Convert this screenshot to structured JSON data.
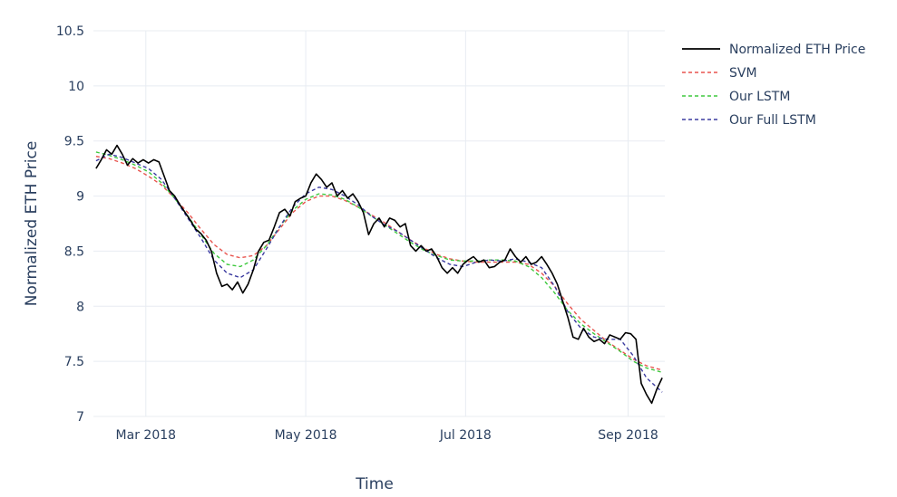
{
  "chart_data": {
    "type": "line",
    "xlabel": "Time",
    "ylabel": "Normalized ETH Price",
    "xlim": [
      "2018-02-09",
      "2018-09-15"
    ],
    "ylim": [
      7.0,
      10.5
    ],
    "x_ticks": [
      {
        "date": "2018-03-01",
        "label": "Mar 2018"
      },
      {
        "date": "2018-05-01",
        "label": "May 2018"
      },
      {
        "date": "2018-07-01",
        "label": "Jul 2018"
      },
      {
        "date": "2018-09-01",
        "label": "Sep 2018"
      }
    ],
    "y_ticks": [
      {
        "value": 7,
        "label": "7"
      },
      {
        "value": 7.5,
        "label": "7.5"
      },
      {
        "value": 8,
        "label": "8"
      },
      {
        "value": 8.5,
        "label": "8.5"
      },
      {
        "value": 9,
        "label": "9"
      },
      {
        "value": 9.5,
        "label": "9.5"
      },
      {
        "value": 10,
        "label": "10"
      },
      {
        "value": 10.5,
        "label": "10.5"
      }
    ],
    "grid": true,
    "legend_position": "top-right",
    "series": [
      {
        "name": "Normalized ETH Price",
        "color": "#000000",
        "dash": "solid",
        "points": [
          [
            "2018-02-10",
            9.25
          ],
          [
            "2018-02-12",
            9.33
          ],
          [
            "2018-02-14",
            9.42
          ],
          [
            "2018-02-16",
            9.38
          ],
          [
            "2018-02-18",
            9.46
          ],
          [
            "2018-02-20",
            9.38
          ],
          [
            "2018-02-22",
            9.28
          ],
          [
            "2018-02-24",
            9.34
          ],
          [
            "2018-02-26",
            9.3
          ],
          [
            "2018-02-28",
            9.33
          ],
          [
            "2018-03-02",
            9.3
          ],
          [
            "2018-03-04",
            9.33
          ],
          [
            "2018-03-06",
            9.31
          ],
          [
            "2018-03-08",
            9.18
          ],
          [
            "2018-03-10",
            9.05
          ],
          [
            "2018-03-12",
            9.0
          ],
          [
            "2018-03-14",
            8.92
          ],
          [
            "2018-03-16",
            8.85
          ],
          [
            "2018-03-18",
            8.78
          ],
          [
            "2018-03-20",
            8.7
          ],
          [
            "2018-03-22",
            8.66
          ],
          [
            "2018-03-24",
            8.6
          ],
          [
            "2018-03-26",
            8.5
          ],
          [
            "2018-03-28",
            8.3
          ],
          [
            "2018-03-30",
            8.18
          ],
          [
            "2018-04-01",
            8.2
          ],
          [
            "2018-04-03",
            8.15
          ],
          [
            "2018-04-05",
            8.22
          ],
          [
            "2018-04-07",
            8.12
          ],
          [
            "2018-04-09",
            8.2
          ],
          [
            "2018-04-11",
            8.33
          ],
          [
            "2018-04-13",
            8.5
          ],
          [
            "2018-04-15",
            8.58
          ],
          [
            "2018-04-17",
            8.6
          ],
          [
            "2018-04-19",
            8.72
          ],
          [
            "2018-04-21",
            8.85
          ],
          [
            "2018-04-23",
            8.88
          ],
          [
            "2018-04-25",
            8.82
          ],
          [
            "2018-04-27",
            8.95
          ],
          [
            "2018-04-29",
            8.98
          ],
          [
            "2018-05-01",
            9.0
          ],
          [
            "2018-05-03",
            9.12
          ],
          [
            "2018-05-05",
            9.2
          ],
          [
            "2018-05-07",
            9.15
          ],
          [
            "2018-05-09",
            9.08
          ],
          [
            "2018-05-11",
            9.12
          ],
          [
            "2018-05-13",
            9.0
          ],
          [
            "2018-05-15",
            9.05
          ],
          [
            "2018-05-17",
            8.98
          ],
          [
            "2018-05-19",
            9.02
          ],
          [
            "2018-05-21",
            8.95
          ],
          [
            "2018-05-23",
            8.85
          ],
          [
            "2018-05-25",
            8.65
          ],
          [
            "2018-05-27",
            8.75
          ],
          [
            "2018-05-29",
            8.8
          ],
          [
            "2018-05-31",
            8.72
          ],
          [
            "2018-06-02",
            8.8
          ],
          [
            "2018-06-04",
            8.78
          ],
          [
            "2018-06-06",
            8.72
          ],
          [
            "2018-06-08",
            8.75
          ],
          [
            "2018-06-10",
            8.55
          ],
          [
            "2018-06-12",
            8.5
          ],
          [
            "2018-06-14",
            8.55
          ],
          [
            "2018-06-16",
            8.5
          ],
          [
            "2018-06-18",
            8.52
          ],
          [
            "2018-06-20",
            8.45
          ],
          [
            "2018-06-22",
            8.35
          ],
          [
            "2018-06-24",
            8.3
          ],
          [
            "2018-06-26",
            8.35
          ],
          [
            "2018-06-28",
            8.3
          ],
          [
            "2018-06-30",
            8.38
          ],
          [
            "2018-07-02",
            8.42
          ],
          [
            "2018-07-04",
            8.45
          ],
          [
            "2018-07-06",
            8.4
          ],
          [
            "2018-07-08",
            8.42
          ],
          [
            "2018-07-10",
            8.35
          ],
          [
            "2018-07-12",
            8.36
          ],
          [
            "2018-07-14",
            8.4
          ],
          [
            "2018-07-16",
            8.42
          ],
          [
            "2018-07-18",
            8.52
          ],
          [
            "2018-07-20",
            8.45
          ],
          [
            "2018-07-22",
            8.4
          ],
          [
            "2018-07-24",
            8.45
          ],
          [
            "2018-07-26",
            8.38
          ],
          [
            "2018-07-28",
            8.4
          ],
          [
            "2018-07-30",
            8.45
          ],
          [
            "2018-08-01",
            8.38
          ],
          [
            "2018-08-03",
            8.3
          ],
          [
            "2018-08-05",
            8.2
          ],
          [
            "2018-08-07",
            8.05
          ],
          [
            "2018-08-09",
            7.9
          ],
          [
            "2018-08-11",
            7.72
          ],
          [
            "2018-08-13",
            7.7
          ],
          [
            "2018-08-15",
            7.8
          ],
          [
            "2018-08-17",
            7.72
          ],
          [
            "2018-08-19",
            7.68
          ],
          [
            "2018-08-21",
            7.7
          ],
          [
            "2018-08-23",
            7.66
          ],
          [
            "2018-08-25",
            7.74
          ],
          [
            "2018-08-27",
            7.72
          ],
          [
            "2018-08-29",
            7.7
          ],
          [
            "2018-08-31",
            7.76
          ],
          [
            "2018-09-02",
            7.75
          ],
          [
            "2018-09-04",
            7.7
          ],
          [
            "2018-09-06",
            7.3
          ],
          [
            "2018-09-08",
            7.2
          ],
          [
            "2018-09-10",
            7.12
          ],
          [
            "2018-09-12",
            7.25
          ],
          [
            "2018-09-14",
            7.35
          ]
        ]
      },
      {
        "name": "SVM",
        "color": "#e8544e",
        "dash": "dashed",
        "points": [
          [
            "2018-02-10",
            9.36
          ],
          [
            "2018-02-15",
            9.34
          ],
          [
            "2018-02-20",
            9.3
          ],
          [
            "2018-02-25",
            9.25
          ],
          [
            "2018-03-02",
            9.18
          ],
          [
            "2018-03-07",
            9.1
          ],
          [
            "2018-03-12",
            8.98
          ],
          [
            "2018-03-17",
            8.85
          ],
          [
            "2018-03-22",
            8.7
          ],
          [
            "2018-03-27",
            8.56
          ],
          [
            "2018-04-01",
            8.47
          ],
          [
            "2018-04-06",
            8.44
          ],
          [
            "2018-04-11",
            8.46
          ],
          [
            "2018-04-16",
            8.55
          ],
          [
            "2018-04-21",
            8.7
          ],
          [
            "2018-04-26",
            8.85
          ],
          [
            "2018-05-01",
            8.95
          ],
          [
            "2018-05-06",
            9.0
          ],
          [
            "2018-05-11",
            9.0
          ],
          [
            "2018-05-16",
            8.96
          ],
          [
            "2018-05-21",
            8.9
          ],
          [
            "2018-05-26",
            8.83
          ],
          [
            "2018-05-31",
            8.76
          ],
          [
            "2018-06-05",
            8.68
          ],
          [
            "2018-06-10",
            8.6
          ],
          [
            "2018-06-15",
            8.53
          ],
          [
            "2018-06-20",
            8.47
          ],
          [
            "2018-06-25",
            8.43
          ],
          [
            "2018-06-30",
            8.41
          ],
          [
            "2018-07-05",
            8.4
          ],
          [
            "2018-07-10",
            8.4
          ],
          [
            "2018-07-15",
            8.4
          ],
          [
            "2018-07-20",
            8.4
          ],
          [
            "2018-07-25",
            8.38
          ],
          [
            "2018-07-30",
            8.3
          ],
          [
            "2018-08-04",
            8.18
          ],
          [
            "2018-08-09",
            8.02
          ],
          [
            "2018-08-14",
            7.88
          ],
          [
            "2018-08-19",
            7.78
          ],
          [
            "2018-08-24",
            7.68
          ],
          [
            "2018-08-29",
            7.6
          ],
          [
            "2018-09-03",
            7.52
          ],
          [
            "2018-09-08",
            7.46
          ],
          [
            "2018-09-14",
            7.42
          ]
        ]
      },
      {
        "name": "Our LSTM",
        "color": "#3ec93e",
        "dash": "dashed",
        "points": [
          [
            "2018-02-10",
            9.4
          ],
          [
            "2018-02-15",
            9.37
          ],
          [
            "2018-02-20",
            9.33
          ],
          [
            "2018-02-25",
            9.28
          ],
          [
            "2018-03-02",
            9.22
          ],
          [
            "2018-03-07",
            9.12
          ],
          [
            "2018-03-12",
            8.98
          ],
          [
            "2018-03-17",
            8.82
          ],
          [
            "2018-03-22",
            8.65
          ],
          [
            "2018-03-27",
            8.48
          ],
          [
            "2018-04-01",
            8.38
          ],
          [
            "2018-04-06",
            8.36
          ],
          [
            "2018-04-11",
            8.42
          ],
          [
            "2018-04-16",
            8.55
          ],
          [
            "2018-04-21",
            8.72
          ],
          [
            "2018-04-26",
            8.87
          ],
          [
            "2018-05-01",
            8.97
          ],
          [
            "2018-05-06",
            9.02
          ],
          [
            "2018-05-11",
            9.01
          ],
          [
            "2018-05-16",
            8.97
          ],
          [
            "2018-05-21",
            8.9
          ],
          [
            "2018-05-26",
            8.82
          ],
          [
            "2018-05-31",
            8.74
          ],
          [
            "2018-06-05",
            8.66
          ],
          [
            "2018-06-10",
            8.58
          ],
          [
            "2018-06-15",
            8.51
          ],
          [
            "2018-06-20",
            8.46
          ],
          [
            "2018-06-25",
            8.42
          ],
          [
            "2018-06-30",
            8.41
          ],
          [
            "2018-07-05",
            8.41
          ],
          [
            "2018-07-10",
            8.42
          ],
          [
            "2018-07-15",
            8.42
          ],
          [
            "2018-07-20",
            8.41
          ],
          [
            "2018-07-25",
            8.36
          ],
          [
            "2018-07-30",
            8.26
          ],
          [
            "2018-08-04",
            8.12
          ],
          [
            "2018-08-09",
            7.96
          ],
          [
            "2018-08-14",
            7.84
          ],
          [
            "2018-08-19",
            7.75
          ],
          [
            "2018-08-24",
            7.67
          ],
          [
            "2018-08-29",
            7.59
          ],
          [
            "2018-09-03",
            7.5
          ],
          [
            "2018-09-08",
            7.44
          ],
          [
            "2018-09-14",
            7.4
          ]
        ]
      },
      {
        "name": "Our Full LSTM",
        "color": "#3b3ba0",
        "dash": "dashed",
        "points": [
          [
            "2018-02-10",
            9.32
          ],
          [
            "2018-02-15",
            9.38
          ],
          [
            "2018-02-20",
            9.35
          ],
          [
            "2018-02-25",
            9.3
          ],
          [
            "2018-03-02",
            9.25
          ],
          [
            "2018-03-07",
            9.15
          ],
          [
            "2018-03-12",
            8.98
          ],
          [
            "2018-03-17",
            8.8
          ],
          [
            "2018-03-22",
            8.62
          ],
          [
            "2018-03-27",
            8.42
          ],
          [
            "2018-04-01",
            8.3
          ],
          [
            "2018-04-06",
            8.26
          ],
          [
            "2018-04-11",
            8.33
          ],
          [
            "2018-04-16",
            8.52
          ],
          [
            "2018-04-21",
            8.72
          ],
          [
            "2018-04-26",
            8.9
          ],
          [
            "2018-05-01",
            9.02
          ],
          [
            "2018-05-06",
            9.08
          ],
          [
            "2018-05-11",
            9.06
          ],
          [
            "2018-05-16",
            9.0
          ],
          [
            "2018-05-21",
            8.92
          ],
          [
            "2018-05-26",
            8.82
          ],
          [
            "2018-05-31",
            8.74
          ],
          [
            "2018-06-05",
            8.68
          ],
          [
            "2018-06-10",
            8.6
          ],
          [
            "2018-06-15",
            8.52
          ],
          [
            "2018-06-20",
            8.44
          ],
          [
            "2018-06-25",
            8.38
          ],
          [
            "2018-06-30",
            8.36
          ],
          [
            "2018-07-05",
            8.4
          ],
          [
            "2018-07-10",
            8.42
          ],
          [
            "2018-07-15",
            8.41
          ],
          [
            "2018-07-20",
            8.43
          ],
          [
            "2018-07-25",
            8.4
          ],
          [
            "2018-07-30",
            8.35
          ],
          [
            "2018-08-04",
            8.18
          ],
          [
            "2018-08-09",
            7.95
          ],
          [
            "2018-08-14",
            7.8
          ],
          [
            "2018-08-19",
            7.72
          ],
          [
            "2018-08-24",
            7.7
          ],
          [
            "2018-08-29",
            7.7
          ],
          [
            "2018-09-03",
            7.55
          ],
          [
            "2018-09-08",
            7.35
          ],
          [
            "2018-09-14",
            7.22
          ]
        ]
      }
    ]
  }
}
